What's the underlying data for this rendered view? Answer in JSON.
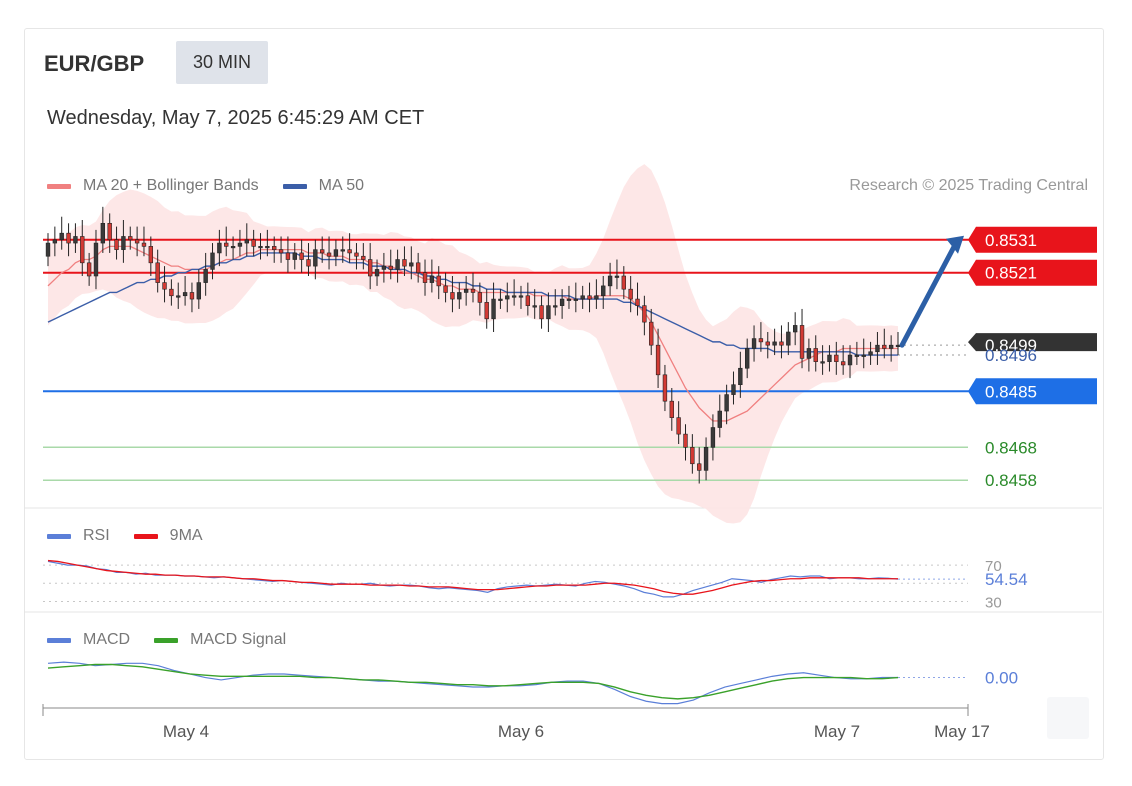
{
  "header": {
    "symbol": "EUR/GBP",
    "timeframe": "30 MIN",
    "datetime": "Wednesday, May 7, 2025 6:45:29 AM CET",
    "credit": "Research © 2025 Trading Central"
  },
  "legends": {
    "main": [
      {
        "label": "MA 20 + Bollinger Bands",
        "color": "#f08080"
      },
      {
        "label": "MA 50",
        "color": "#3b5ea8"
      }
    ],
    "rsi": [
      {
        "label": "RSI",
        "color": "#5b7fd8"
      },
      {
        "label": "9MA",
        "color": "#e8141b"
      }
    ],
    "macd": [
      {
        "label": "MACD",
        "color": "#5b7fd8"
      },
      {
        "label": "MACD Signal",
        "color": "#3aa12a"
      }
    ]
  },
  "chart_data": {
    "type": "candlestick",
    "xaxis": {
      "ticks": [
        "May 4",
        "May 6",
        "May 7",
        "May 17"
      ]
    },
    "ylim": [
      0.8452,
      0.8537
    ],
    "levels": [
      {
        "label": "0.8531",
        "value": 0.8531,
        "color": "#e8141b",
        "style": "resistance"
      },
      {
        "label": "0.8521",
        "value": 0.8521,
        "color": "#e8141b",
        "style": "resistance"
      },
      {
        "label": "0.8499",
        "value": 0.8499,
        "color": "#333333",
        "style": "last"
      },
      {
        "label": "0.8496",
        "value": 0.8496,
        "color": "#3b5ea8",
        "style": "ma50"
      },
      {
        "label": "0.8485",
        "value": 0.8485,
        "color": "#1e6fe6",
        "style": "pivot"
      },
      {
        "label": "0.8468",
        "value": 0.8468,
        "color": "#2a8a2a",
        "style": "support"
      },
      {
        "label": "0.8458",
        "value": 0.8458,
        "color": "#2a8a2a",
        "style": "support"
      }
    ],
    "forecast": {
      "from": 0.8499,
      "to": 0.8531,
      "color": "#2c5fa6"
    },
    "closes": [
      0.853,
      0.8531,
      0.8533,
      0.853,
      0.8532,
      0.8524,
      0.852,
      0.853,
      0.8536,
      0.8531,
      0.8528,
      0.8532,
      0.8531,
      0.853,
      0.8529,
      0.8524,
      0.8518,
      0.8516,
      0.8514,
      0.8514,
      0.8515,
      0.8513,
      0.8518,
      0.8522,
      0.8527,
      0.853,
      0.8529,
      0.8529,
      0.853,
      0.8531,
      0.8529,
      0.8529,
      0.8529,
      0.8528,
      0.8527,
      0.8525,
      0.8527,
      0.8525,
      0.8523,
      0.8528,
      0.8527,
      0.8526,
      0.8528,
      0.8528,
      0.8527,
      0.8526,
      0.8525,
      0.852,
      0.8522,
      0.8523,
      0.8522,
      0.8525,
      0.8523,
      0.8524,
      0.8521,
      0.8518,
      0.852,
      0.8517,
      0.8515,
      0.8513,
      0.8515,
      0.8516,
      0.8515,
      0.8512,
      0.8507,
      0.8513,
      0.8513,
      0.8514,
      0.8514,
      0.8514,
      0.8511,
      0.8511,
      0.8507,
      0.8511,
      0.8511,
      0.8513,
      0.8513,
      0.8513,
      0.8514,
      0.8513,
      0.8514,
      0.8517,
      0.852,
      0.852,
      0.8516,
      0.8513,
      0.8511,
      0.8506,
      0.8499,
      0.849,
      0.8482,
      0.8477,
      0.8472,
      0.8468,
      0.8463,
      0.8461,
      0.8468,
      0.8474,
      0.8479,
      0.8484,
      0.8487,
      0.8492,
      0.8498,
      0.8501,
      0.85,
      0.8499,
      0.85,
      0.8499,
      0.8503,
      0.8505,
      0.8495,
      0.8498,
      0.8494,
      0.8494,
      0.8496,
      0.8494,
      0.8493,
      0.8496,
      0.8496,
      0.8496,
      0.8497,
      0.8499,
      0.8498,
      0.8499,
      0.8499
    ],
    "ma20": [
      0.8517,
      0.8519,
      0.8521,
      0.8522,
      0.8524,
      0.8525,
      0.8525,
      0.8526,
      0.8528,
      0.8529,
      0.8529,
      0.8529,
      0.8529,
      0.8528,
      0.8527,
      0.8526,
      0.8525,
      0.8524,
      0.8523,
      0.8523,
      0.8522,
      0.8522,
      0.8522,
      0.8522,
      0.8523,
      0.8524,
      0.8525,
      0.8525,
      0.8526,
      0.8527,
      0.8527,
      0.8528,
      0.8528,
      0.8528,
      0.8528,
      0.8528,
      0.8528,
      0.8528,
      0.8527,
      0.8527,
      0.8527,
      0.8526,
      0.8526,
      0.8526,
      0.8525,
      0.8525,
      0.8525,
      0.8524,
      0.8524,
      0.8523,
      0.8523,
      0.8522,
      0.8521,
      0.8521,
      0.852,
      0.8519,
      0.8519,
      0.8518,
      0.8517,
      0.8517,
      0.8516,
      0.8516,
      0.8516,
      0.8515,
      0.8515,
      0.8515,
      0.8515,
      0.8515,
      0.8515,
      0.8515,
      0.8515,
      0.8514,
      0.8514,
      0.8514,
      0.8514,
      0.8514,
      0.8513,
      0.8513,
      0.8513,
      0.8513,
      0.8514,
      0.8514,
      0.8514,
      0.8514,
      0.8514,
      0.8513,
      0.8511,
      0.8509,
      0.8506,
      0.8502,
      0.8498,
      0.8494,
      0.849,
      0.8486,
      0.8483,
      0.848,
      0.8478,
      0.8476,
      0.8476,
      0.8476,
      0.8477,
      0.8478,
      0.8479,
      0.8481,
      0.8483,
      0.8485,
      0.8487,
      0.8489,
      0.8491,
      0.8493,
      0.8494,
      0.8495,
      0.8496,
      0.8497,
      0.8497,
      0.8497,
      0.8498,
      0.8498,
      0.8498,
      0.8498,
      0.8498,
      0.8498,
      0.8498,
      0.8498,
      0.8498
    ],
    "ma50": [
      0.8506,
      0.8507,
      0.8508,
      0.8509,
      0.851,
      0.8511,
      0.8512,
      0.8513,
      0.8514,
      0.8515,
      0.8515,
      0.8516,
      0.8517,
      0.8518,
      0.8518,
      0.8519,
      0.8519,
      0.852,
      0.852,
      0.8521,
      0.8521,
      0.8522,
      0.8522,
      0.8523,
      0.8523,
      0.8524,
      0.8524,
      0.8525,
      0.8525,
      0.8526,
      0.8526,
      0.8527,
      0.8527,
      0.8527,
      0.8527,
      0.8527,
      0.8527,
      0.8526,
      0.8526,
      0.8526,
      0.8525,
      0.8525,
      0.8525,
      0.8525,
      0.8524,
      0.8524,
      0.8524,
      0.8523,
      0.8523,
      0.8523,
      0.8522,
      0.8522,
      0.8522,
      0.8521,
      0.8521,
      0.852,
      0.852,
      0.8519,
      0.8519,
      0.8518,
      0.8518,
      0.8518,
      0.8517,
      0.8517,
      0.8516,
      0.8516,
      0.8516,
      0.8515,
      0.8515,
      0.8515,
      0.8515,
      0.8515,
      0.8515,
      0.8514,
      0.8514,
      0.8514,
      0.8514,
      0.8513,
      0.8513,
      0.8513,
      0.8513,
      0.8513,
      0.8513,
      0.8513,
      0.8512,
      0.8512,
      0.8511,
      0.851,
      0.8509,
      0.8508,
      0.8507,
      0.8506,
      0.8505,
      0.8504,
      0.8503,
      0.8502,
      0.8501,
      0.85,
      0.85,
      0.8499,
      0.8499,
      0.8498,
      0.8498,
      0.8498,
      0.8498,
      0.8498,
      0.8497,
      0.8497,
      0.8497,
      0.8497,
      0.8497,
      0.8497,
      0.8497,
      0.8497,
      0.8497,
      0.8497,
      0.8497,
      0.8497,
      0.8496,
      0.8496,
      0.8496,
      0.8496,
      0.8496,
      0.8496,
      0.8496
    ],
    "rsi": {
      "levels": [
        "70",
        "30"
      ],
      "current": "54.54",
      "ylim": [
        25,
        80
      ],
      "values": [
        74,
        72,
        70,
        70,
        69,
        66,
        65,
        62,
        62,
        60,
        61,
        59,
        59,
        59,
        58,
        58,
        57,
        56,
        57,
        56,
        55,
        54,
        53,
        52,
        53,
        52,
        51,
        50,
        49,
        48,
        50,
        49,
        49,
        50,
        48,
        47,
        48,
        48,
        47,
        45,
        44,
        45,
        44,
        43,
        42,
        40,
        44,
        46,
        47,
        48,
        47,
        48,
        49,
        48,
        47,
        50,
        52,
        51,
        49,
        47,
        44,
        40,
        38,
        35,
        35,
        38,
        42,
        45,
        48,
        51,
        55,
        54,
        53,
        51,
        54,
        56,
        58,
        57,
        58,
        58,
        55,
        56,
        56,
        55,
        55,
        56,
        55.5,
        54.54
      ],
      "ma9": [
        75,
        74,
        72,
        70,
        68,
        66,
        64,
        63,
        62,
        61,
        60,
        60,
        59,
        59,
        58,
        58,
        57,
        57,
        57,
        56,
        55,
        55,
        54,
        53,
        53,
        52,
        51,
        51,
        50,
        49,
        49,
        49,
        49,
        48,
        48,
        48,
        48,
        47,
        47,
        46,
        46,
        46,
        45,
        44,
        43,
        43,
        43,
        44,
        45,
        46,
        47,
        47,
        48,
        48,
        48,
        48,
        49,
        50,
        50,
        49,
        48,
        46,
        44,
        41,
        39,
        38,
        38,
        40,
        42,
        45,
        48,
        50,
        52,
        53,
        53,
        54,
        55,
        55,
        56,
        56,
        56,
        56,
        56,
        56,
        55,
        55,
        55,
        55
      ]
    },
    "macd": {
      "current": "0.00",
      "ylim": [
        -2.4,
        1.9
      ],
      "values": [
        1.2,
        1.3,
        1.2,
        1.0,
        1.1,
        1.2,
        1.2,
        1.0,
        0.6,
        0.3,
        0.0,
        -0.2,
        0.0,
        0.2,
        0.3,
        0.3,
        0.2,
        0.1,
        0.0,
        -0.1,
        -0.2,
        -0.3,
        -0.3,
        -0.4,
        -0.5,
        -0.6,
        -0.7,
        -0.8,
        -0.8,
        -0.7,
        -0.7,
        -0.6,
        -0.4,
        -0.3,
        -0.3,
        -0.5,
        -1.0,
        -1.6,
        -2.0,
        -2.2,
        -2.2,
        -1.9,
        -1.3,
        -0.8,
        -0.5,
        -0.2,
        0.1,
        0.3,
        0.4,
        0.2,
        0.0,
        -0.1,
        -0.1,
        0.0,
        0.0
      ],
      "signal": [
        0.8,
        0.9,
        1.0,
        1.1,
        1.1,
        1.0,
        0.9,
        0.7,
        0.5,
        0.3,
        0.2,
        0.1,
        0.1,
        0.1,
        0.1,
        0.1,
        0.1,
        0.0,
        0.0,
        -0.1,
        -0.2,
        -0.2,
        -0.3,
        -0.4,
        -0.4,
        -0.5,
        -0.6,
        -0.6,
        -0.7,
        -0.7,
        -0.6,
        -0.5,
        -0.4,
        -0.4,
        -0.4,
        -0.5,
        -0.8,
        -1.2,
        -1.5,
        -1.7,
        -1.8,
        -1.7,
        -1.5,
        -1.2,
        -0.9,
        -0.6,
        -0.3,
        -0.1,
        0.0,
        0.0,
        0.0,
        0.0,
        -0.1,
        -0.1,
        0.0
      ]
    }
  }
}
